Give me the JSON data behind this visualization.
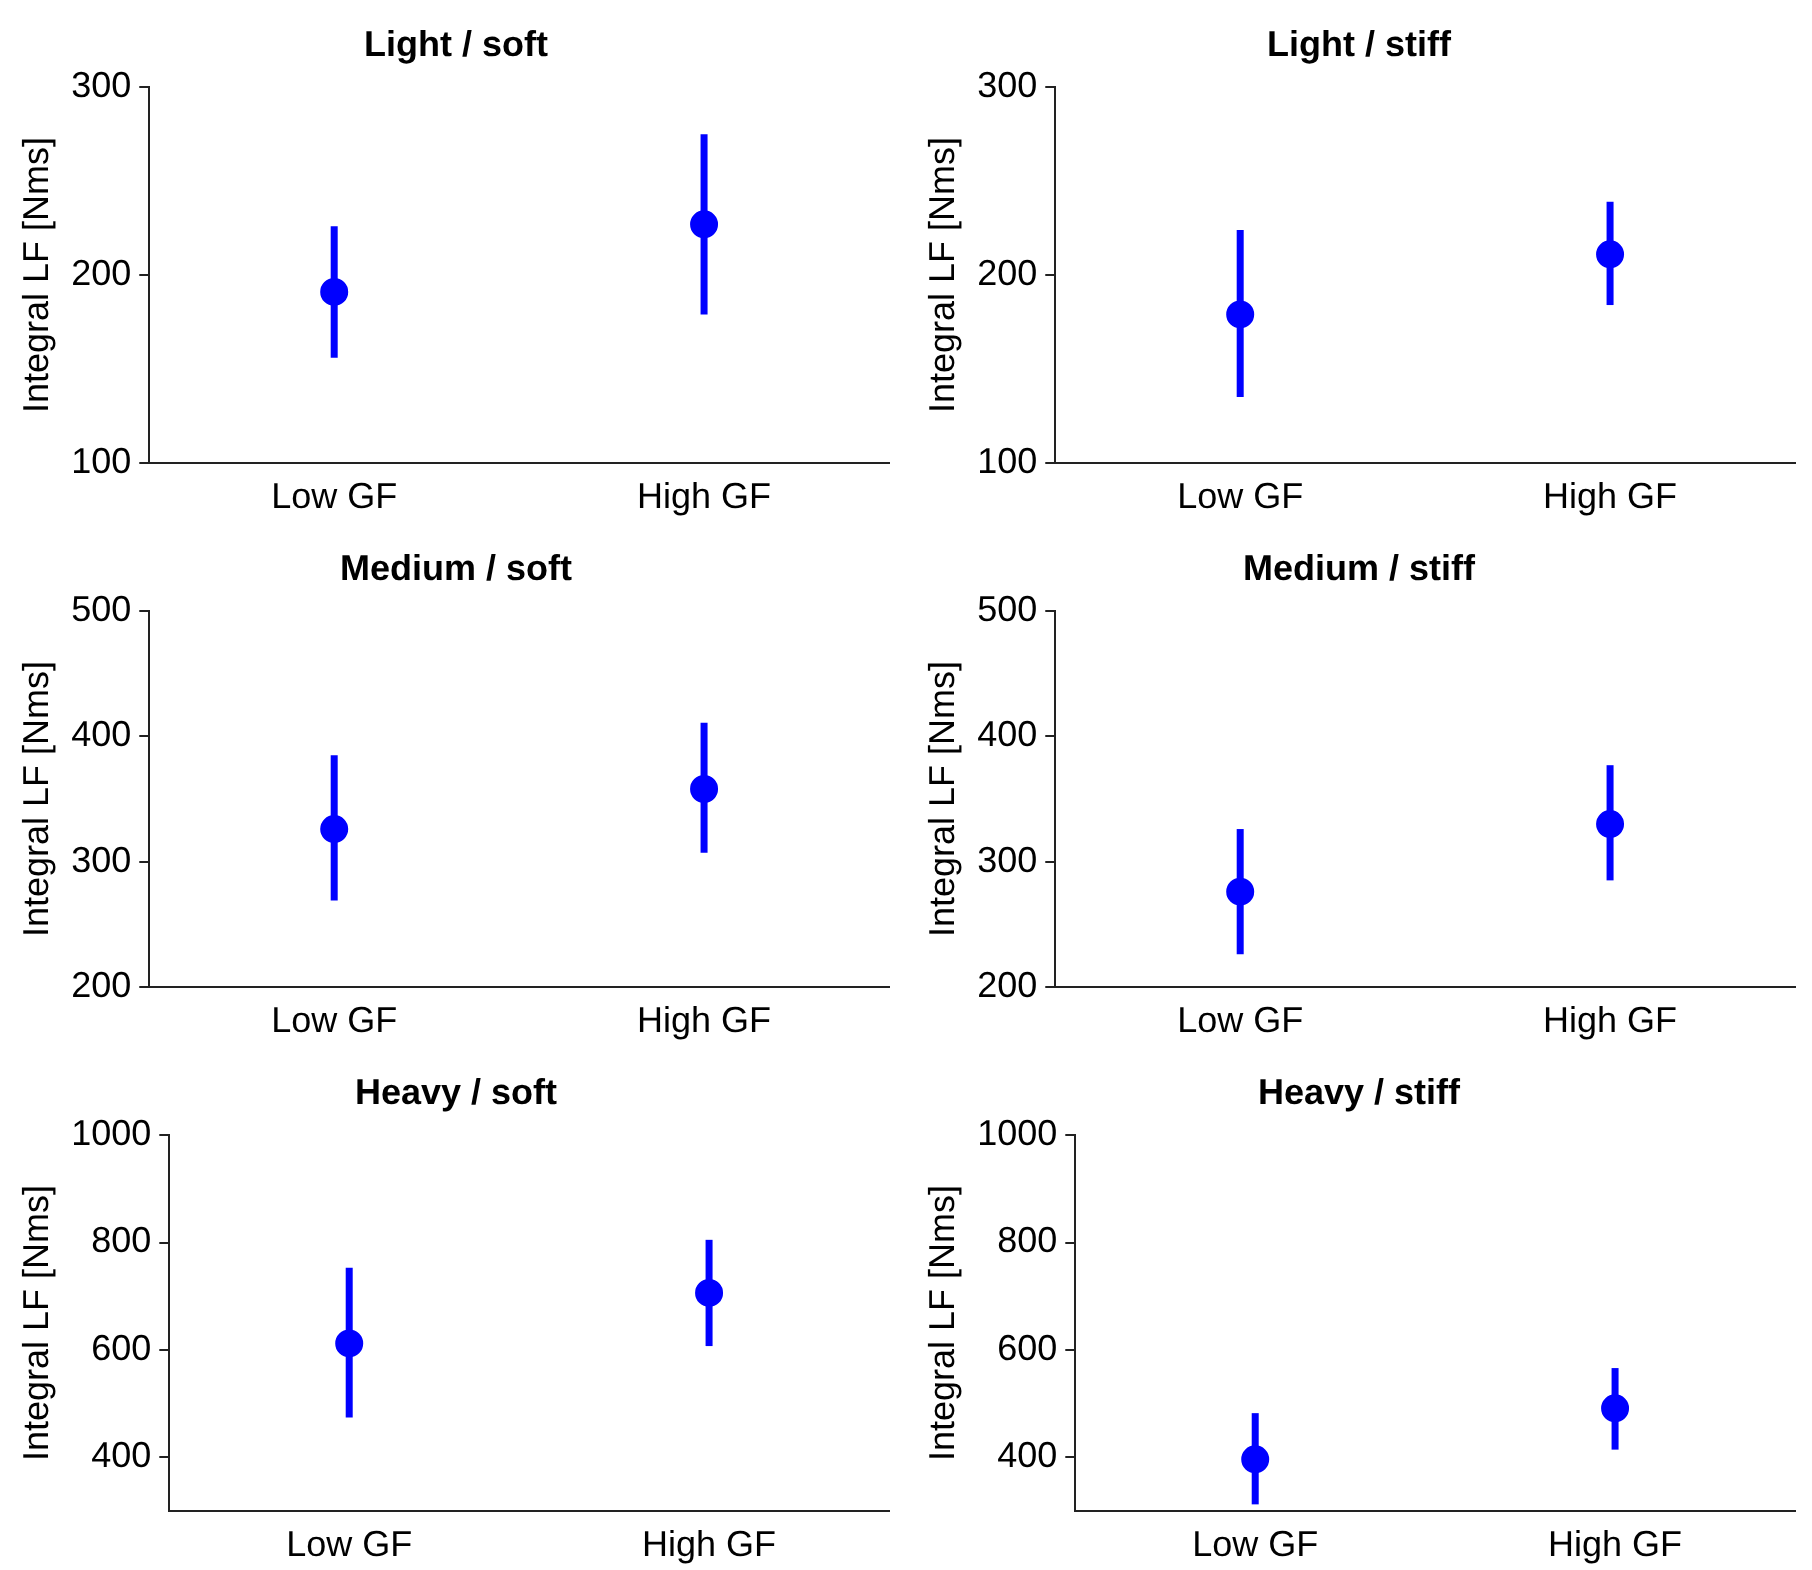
{
  "chart_data": [
    {
      "type": "scatter",
      "title": "Light / soft",
      "ylabel": "Integral LF [Nms]",
      "categories": [
        "Low GF",
        "High GF"
      ],
      "values": [
        191,
        227
      ],
      "errors": [
        [
          156,
          226
        ],
        [
          179,
          275
        ]
      ],
      "color": "#0000ff",
      "marker": "circle",
      "ylim": [
        100,
        300
      ],
      "yticks": [
        100,
        200,
        300
      ],
      "grid": false,
      "legend": false
    },
    {
      "type": "scatter",
      "title": "Light / stiff",
      "ylabel": "Integral LF [Nms]",
      "categories": [
        "Low GF",
        "High GF"
      ],
      "values": [
        179,
        211
      ],
      "errors": [
        [
          135,
          224
        ],
        [
          184,
          239
        ]
      ],
      "color": "#0000ff",
      "marker": "circle",
      "ylim": [
        100,
        300
      ],
      "yticks": [
        100,
        200,
        300
      ],
      "grid": false,
      "legend": false
    },
    {
      "type": "scatter",
      "title": "Medium / soft",
      "ylabel": "Integral LF [Nms]",
      "categories": [
        "Low GF",
        "High GF"
      ],
      "values": [
        326,
        358
      ],
      "errors": [
        [
          269,
          385
        ],
        [
          307,
          411
        ]
      ],
      "color": "#0000ff",
      "marker": "circle",
      "ylim": [
        200,
        500
      ],
      "yticks": [
        200,
        300,
        400,
        500
      ],
      "grid": false,
      "legend": false
    },
    {
      "type": "scatter",
      "title": "Medium / stiff",
      "ylabel": "Integral LF [Nms]",
      "categories": [
        "Low GF",
        "High GF"
      ],
      "values": [
        276,
        330
      ],
      "errors": [
        [
          226,
          326
        ],
        [
          285,
          377
        ]
      ],
      "color": "#0000ff",
      "marker": "circle",
      "ylim": [
        200,
        500
      ],
      "yticks": [
        200,
        300,
        400,
        500
      ],
      "grid": false,
      "legend": false
    },
    {
      "type": "scatter",
      "title": "Heavy / soft",
      "ylabel": "Integral LF [Nms]",
      "categories": [
        "Low GF",
        "High GF"
      ],
      "values": [
        612,
        706
      ],
      "errors": [
        [
          474,
          753
        ],
        [
          607,
          805
        ]
      ],
      "color": "#0000ff",
      "marker": "circle",
      "ylim": [
        300,
        1000
      ],
      "yticks": [
        400,
        600,
        800,
        1000
      ],
      "grid": false,
      "legend": false
    },
    {
      "type": "scatter",
      "title": "Heavy / stiff",
      "ylabel": "Integral LF [Nms]",
      "categories": [
        "Low GF",
        "High GF"
      ],
      "values": [
        396,
        491
      ],
      "errors": [
        [
          312,
          482
        ],
        [
          414,
          566
        ]
      ],
      "color": "#0000ff",
      "marker": "circle",
      "ylim": [
        300,
        1000
      ],
      "yticks": [
        400,
        600,
        800,
        1000
      ],
      "grid": false,
      "legend": false
    }
  ]
}
